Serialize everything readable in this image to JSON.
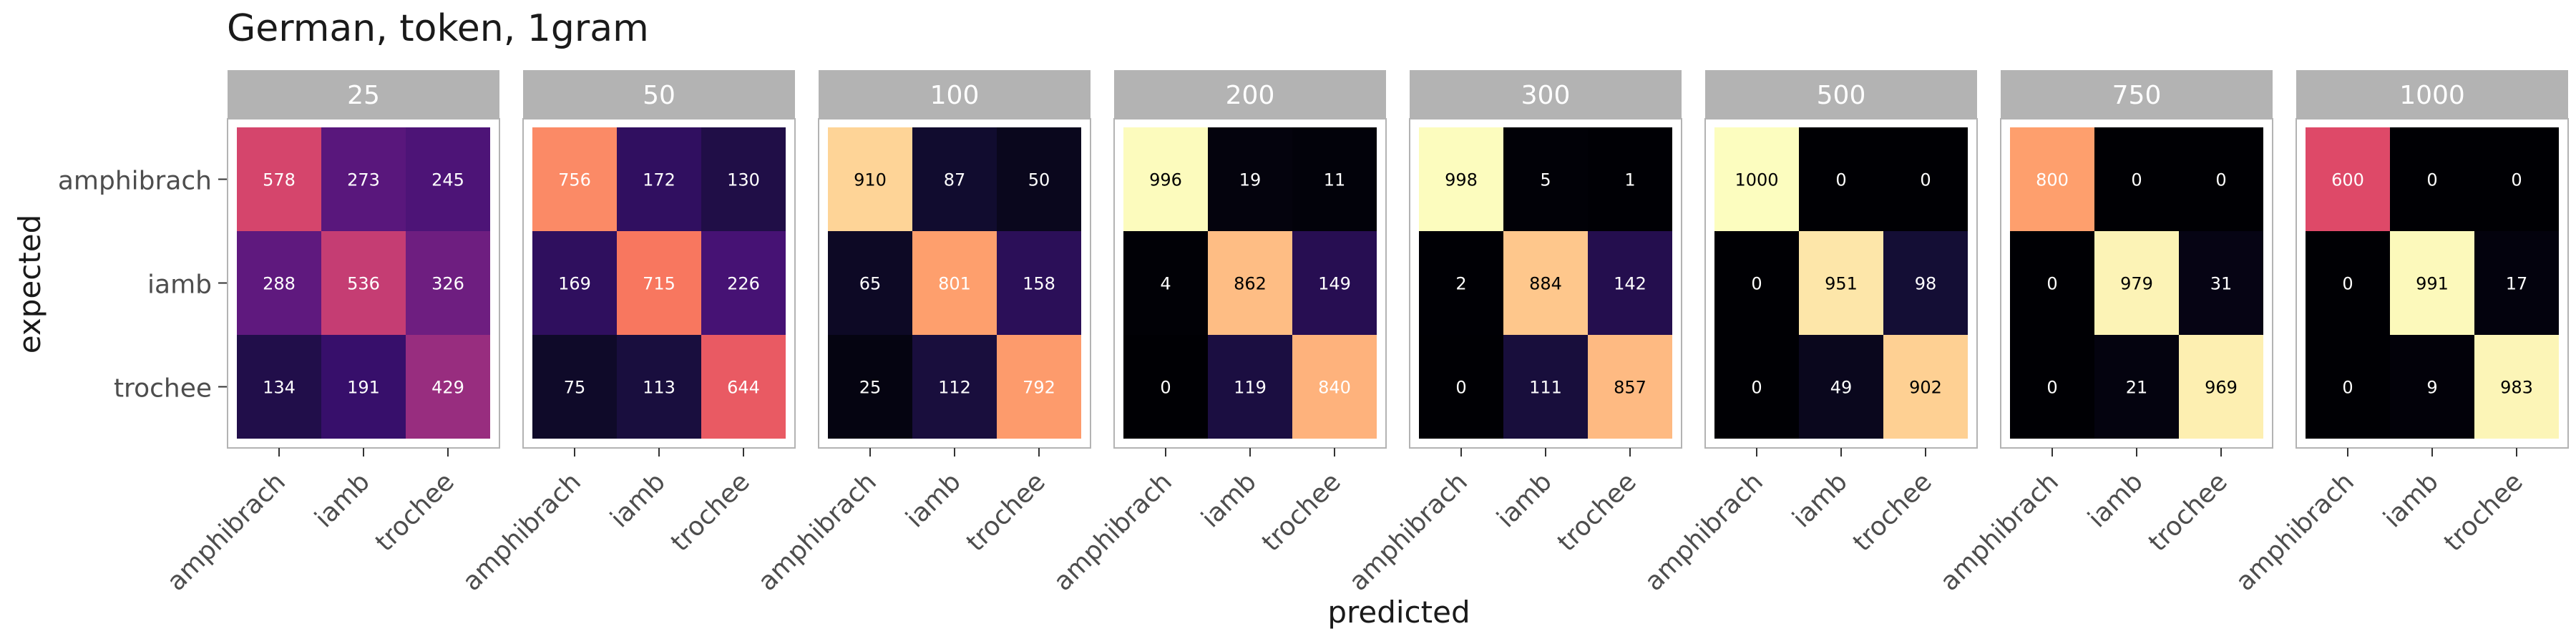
{
  "chart_data": {
    "type": "heatmap",
    "title": "German, token, 1gram",
    "xlabel": "predicted",
    "ylabel": "expected",
    "classes": [
      "amphibrach",
      "iamb",
      "trochee"
    ],
    "color_scale": "magma",
    "value_range": [
      0,
      1000
    ],
    "panels": [
      {
        "label": "25",
        "matrix": [
          [
            578,
            273,
            245
          ],
          [
            288,
            536,
            326
          ],
          [
            134,
            191,
            429
          ]
        ]
      },
      {
        "label": "50",
        "matrix": [
          [
            756,
            172,
            130
          ],
          [
            169,
            715,
            226
          ],
          [
            75,
            113,
            644
          ]
        ]
      },
      {
        "label": "100",
        "matrix": [
          [
            910,
            87,
            50
          ],
          [
            65,
            801,
            158
          ],
          [
            25,
            112,
            792
          ]
        ]
      },
      {
        "label": "200",
        "matrix": [
          [
            996,
            19,
            11
          ],
          [
            4,
            862,
            149
          ],
          [
            0,
            119,
            840
          ]
        ]
      },
      {
        "label": "300",
        "matrix": [
          [
            998,
            5,
            1
          ],
          [
            2,
            884,
            142
          ],
          [
            0,
            111,
            857
          ]
        ]
      },
      {
        "label": "500",
        "matrix": [
          [
            1000,
            0,
            0
          ],
          [
            0,
            951,
            98
          ],
          [
            0,
            49,
            902
          ]
        ]
      },
      {
        "label": "750",
        "matrix": [
          [
            800,
            0,
            0
          ],
          [
            0,
            979,
            31
          ],
          [
            0,
            21,
            969
          ]
        ]
      },
      {
        "label": "1000",
        "matrix": [
          [
            600,
            0,
            0
          ],
          [
            0,
            991,
            17
          ],
          [
            0,
            9,
            983
          ]
        ]
      }
    ]
  }
}
